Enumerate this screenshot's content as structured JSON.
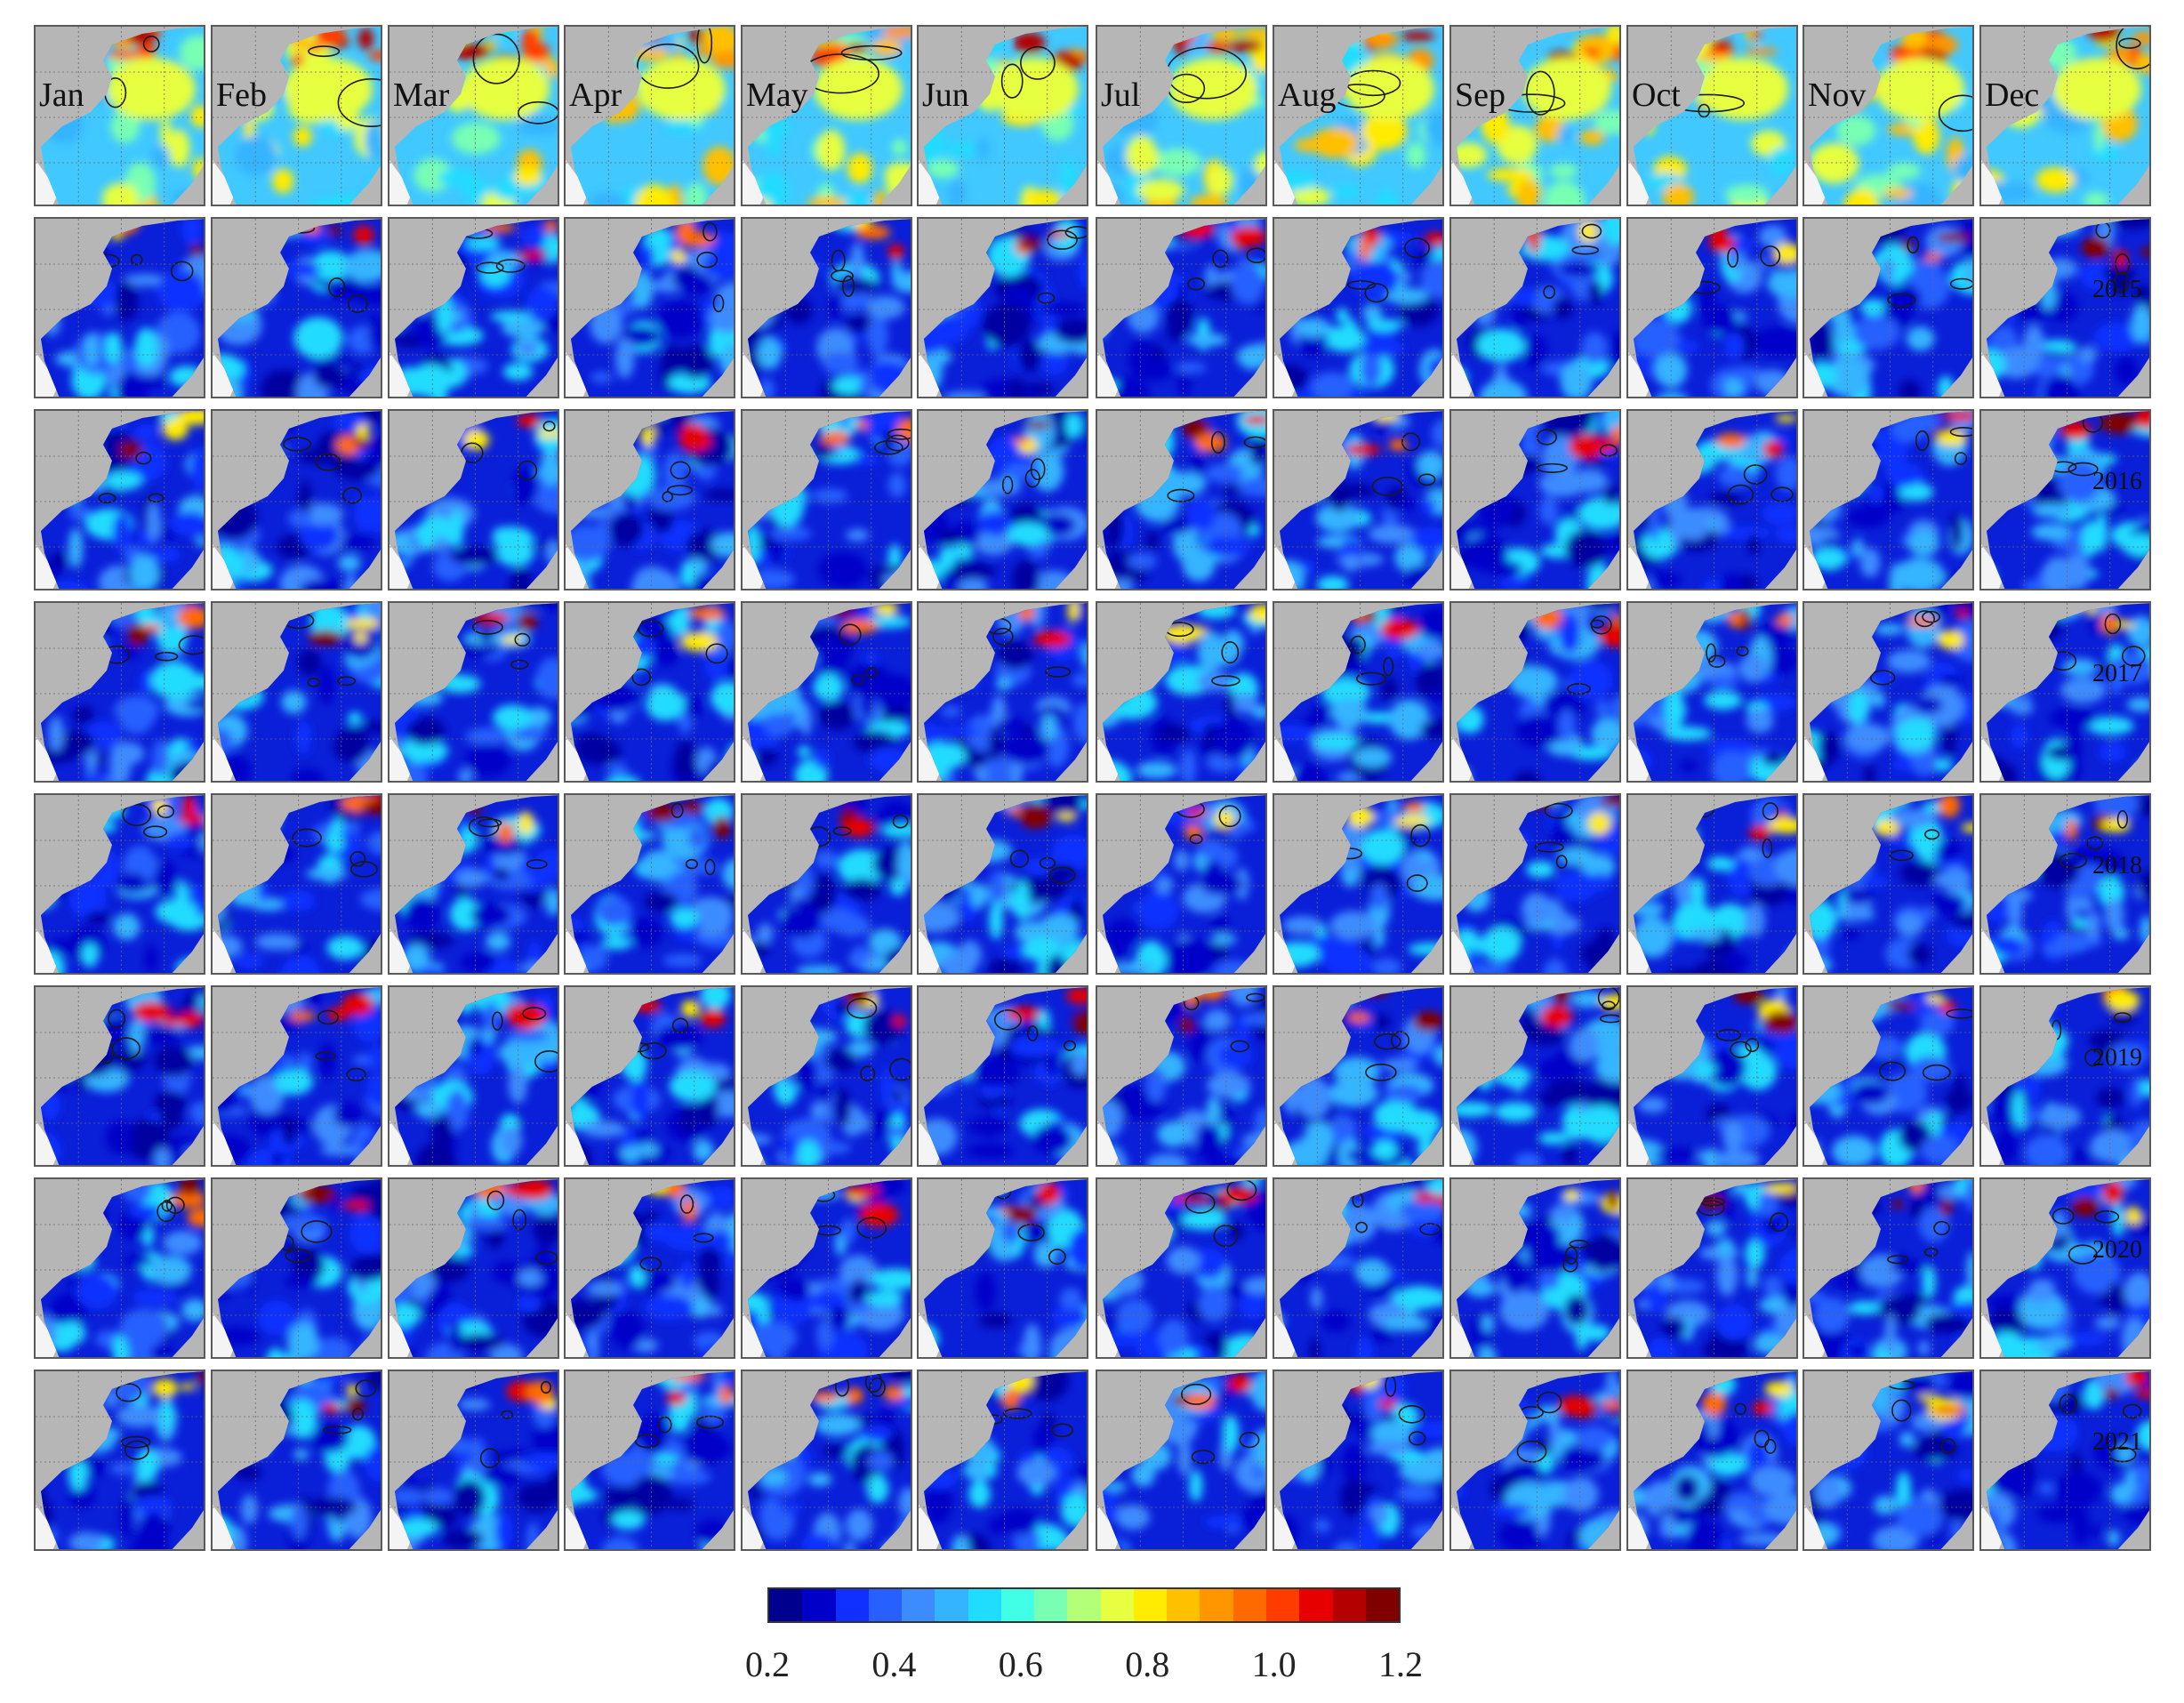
{
  "figure": {
    "rows": 8,
    "cols": 12,
    "months": [
      "Jan",
      "Feb",
      "Mar",
      "Apr",
      "May",
      "Jun",
      "Jul",
      "Aug",
      "Sep",
      "Oct",
      "Nov",
      "Dec"
    ],
    "year_labels": [
      "",
      "2015",
      "2016",
      "2017",
      "2018",
      "2019",
      "2020",
      "2021"
    ]
  },
  "colorbar": {
    "colors": [
      "#00008f",
      "#0000c8",
      "#1030ff",
      "#2860ff",
      "#3c8cff",
      "#34b4ff",
      "#20dcff",
      "#40ffe6",
      "#78ffb4",
      "#b4ff78",
      "#e6ff40",
      "#ffec00",
      "#ffc000",
      "#ff9600",
      "#ff6a00",
      "#ff3c00",
      "#e60000",
      "#b40000",
      "#800000"
    ],
    "tick_labels": [
      "0.2",
      "0.4",
      "0.6",
      "0.8",
      "1.0",
      "1.2"
    ],
    "tick_values": [
      0.2,
      0.4,
      0.6,
      0.8,
      1.0,
      1.2
    ],
    "min": 0.2,
    "max": 1.2
  }
}
